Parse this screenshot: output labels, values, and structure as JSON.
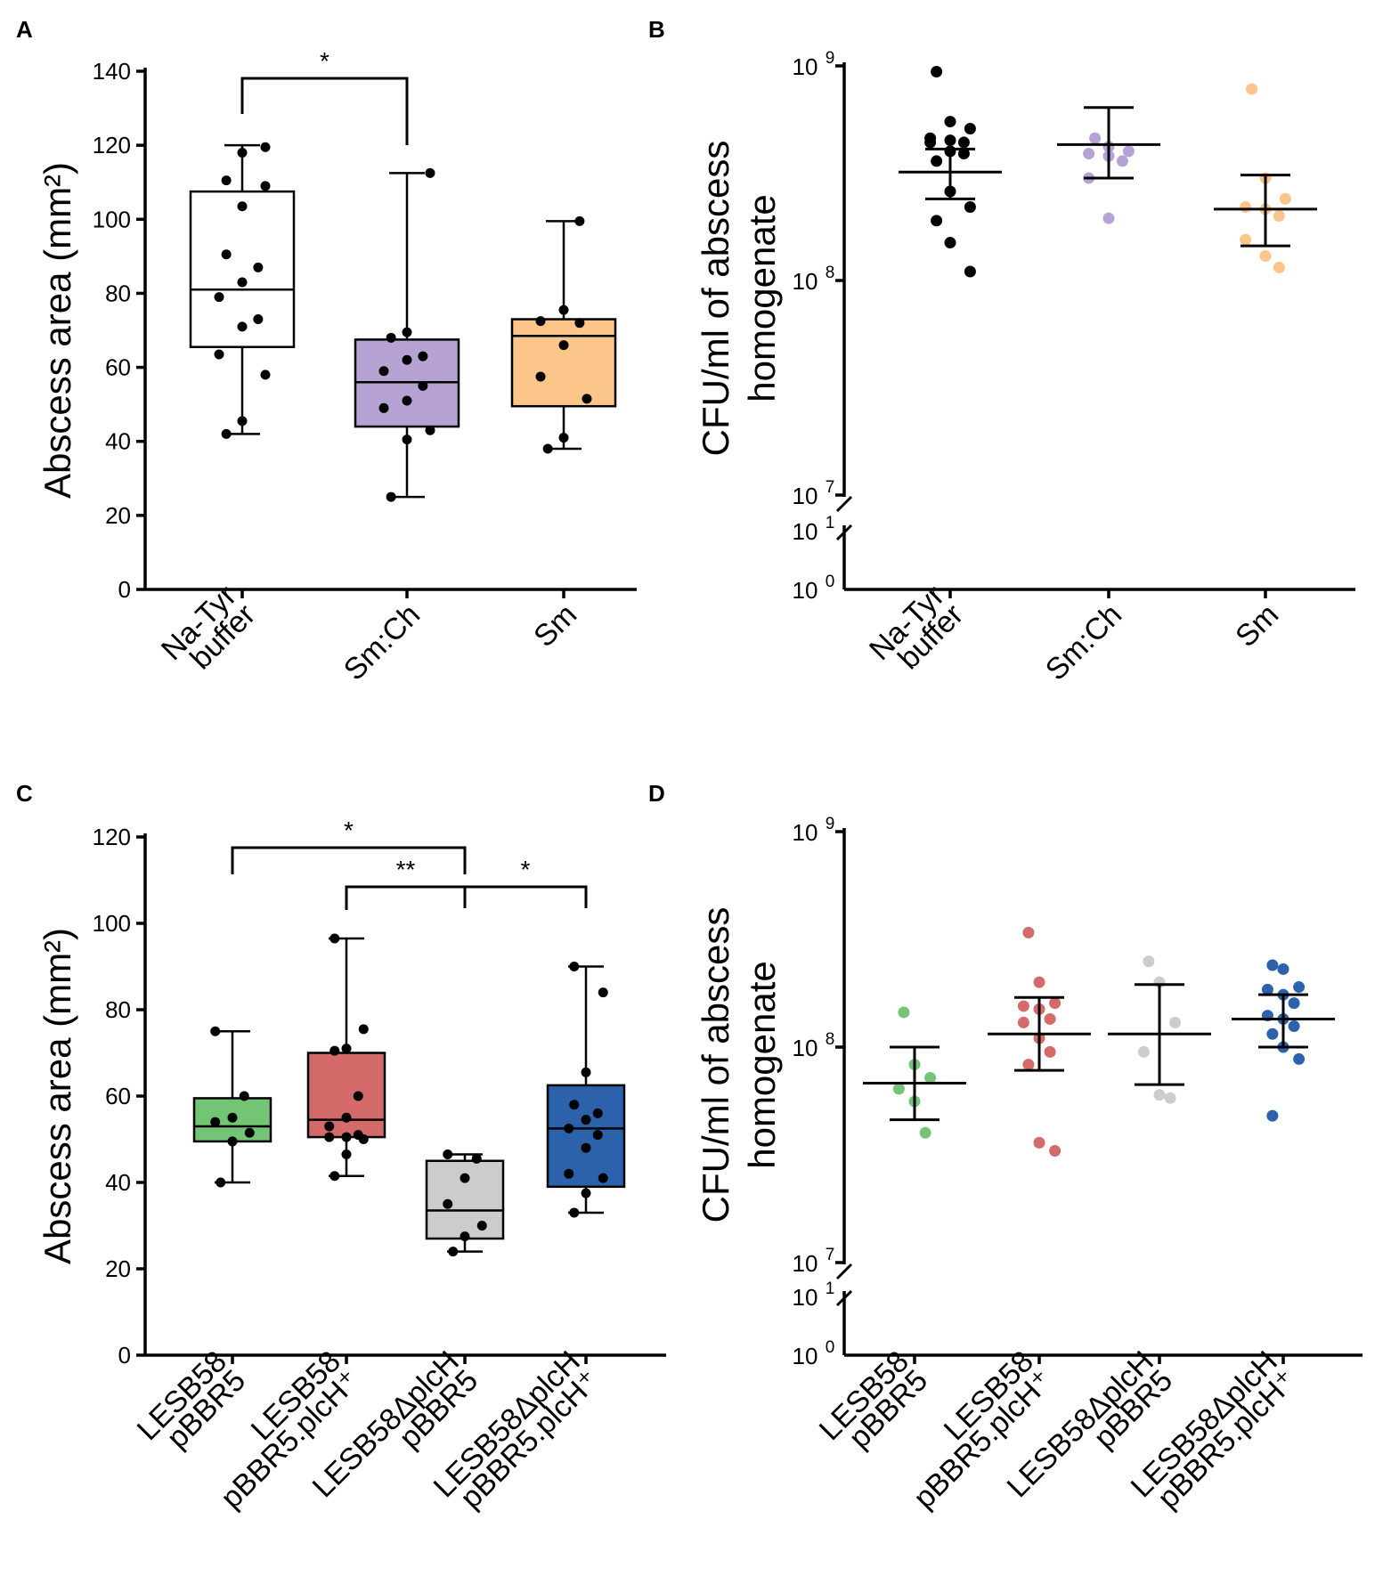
{
  "panel_labels": [
    "A",
    "B",
    "C",
    "D"
  ],
  "chart_data": [
    {
      "panel": "A",
      "type": "box",
      "ylabel": "Abscess area (mm²)",
      "ylim": [
        0,
        140
      ],
      "yticks": [
        "0",
        "20",
        "40",
        "60",
        "80",
        "100",
        "120",
        "140"
      ],
      "categories": [
        [
          "Na-Tyr",
          "buffer"
        ],
        [
          "Sm:Ch"
        ],
        [
          "Sm"
        ]
      ],
      "colors": [
        "#ffffff",
        "#b6a3d4",
        "#fcc58a"
      ],
      "boxes": [
        {
          "min": 42,
          "q1": 65.5,
          "median": 81,
          "q3": 107.5,
          "max": 120,
          "points": [
            42,
            45.5,
            58,
            63.5,
            71,
            73,
            79,
            83,
            87,
            90.5,
            103.5,
            109,
            110.5,
            118,
            119.5
          ]
        },
        {
          "min": 25,
          "q1": 44,
          "median": 56,
          "q3": 67.5,
          "max": 112.5,
          "points": [
            25,
            40.5,
            43,
            49,
            51,
            55,
            59,
            62,
            63,
            68,
            69.5,
            112.5
          ]
        },
        {
          "min": 38,
          "q1": 49.5,
          "median": 68.5,
          "q3": 73,
          "max": 99.5,
          "points": [
            38,
            41,
            51.5,
            57.5,
            66,
            72,
            72.5,
            75.5,
            99.5
          ]
        }
      ],
      "significance": [
        {
          "from": 0,
          "to": 1,
          "label": "*"
        }
      ]
    },
    {
      "panel": "B",
      "type": "scatter",
      "ylabel": [
        "CFU/ml of abscess",
        "homogenate"
      ],
      "yticks": [
        {
          "base": "10",
          "exp": "0"
        },
        {
          "base": "10",
          "exp": "1"
        },
        {
          "base": "10",
          "exp": "7"
        },
        {
          "base": "10",
          "exp": "8"
        },
        {
          "base": "10",
          "exp": "9"
        }
      ],
      "categories": [
        [
          "Na-Tyr",
          "buffer"
        ],
        [
          "Sm:Ch"
        ],
        [
          "Sm"
        ]
      ],
      "colors": [
        "#000000",
        "#b6a3d4",
        "#fcc58a"
      ],
      "groups": [
        {
          "mean": 320000000.0,
          "err_low": 240000000.0,
          "err_high": 410000000.0,
          "points": [
            940000000.0,
            550000000.0,
            510000000.0,
            460000000.0,
            450000000.0,
            440000000.0,
            440000000.0,
            400000000.0,
            390000000.0,
            360000000.0,
            260000000.0,
            220000000.0,
            190000000.0,
            150000000.0,
            110000000.0
          ]
        },
        {
          "mean": 430000000.0,
          "err_low": 300000000.0,
          "err_high": 640000000.0,
          "points": [
            460000000.0,
            420000000.0,
            400000000.0,
            390000000.0,
            380000000.0,
            360000000.0,
            300000000.0,
            195000000.0
          ]
        },
        {
          "mean": 215000000.0,
          "err_low": 145000000.0,
          "err_high": 310000000.0,
          "points": [
            780000000.0,
            300000000.0,
            240000000.0,
            220000000.0,
            215000000.0,
            200000000.0,
            155000000.0,
            130000000.0,
            115000000.0
          ]
        }
      ]
    },
    {
      "panel": "C",
      "type": "box",
      "ylabel": "Abscess area (mm²)",
      "ylim": [
        0,
        120
      ],
      "yticks": [
        "0",
        "20",
        "40",
        "60",
        "80",
        "100",
        "120"
      ],
      "categories": [
        [
          "LESB58",
          "pBBR5"
        ],
        [
          "LESB58",
          "pBBR5.plcH⁺"
        ],
        [
          "LESB58ΔplcH",
          "pBBR5"
        ],
        [
          "LESB58ΔplcH",
          "pBBR5.plcH⁺"
        ]
      ],
      "colors": [
        "#74c476",
        "#d46a6a",
        "#cccccc",
        "#2b62ab"
      ],
      "boxes": [
        {
          "min": 40,
          "q1": 49.5,
          "median": 53,
          "q3": 59.5,
          "max": 75,
          "points": [
            40,
            49.5,
            51.5,
            54,
            55,
            60,
            75
          ]
        },
        {
          "min": 41.5,
          "q1": 50.5,
          "median": 54.5,
          "q3": 70,
          "max": 96.5,
          "points": [
            41.5,
            46.5,
            50,
            50.5,
            50.5,
            51,
            53,
            55,
            60,
            70.5,
            71,
            75.5,
            96.5
          ]
        },
        {
          "min": 24,
          "q1": 27,
          "median": 33.5,
          "q3": 45,
          "max": 46.5,
          "points": [
            24,
            27.5,
            30,
            35,
            41,
            45.5,
            46.5
          ]
        },
        {
          "min": 33,
          "q1": 39,
          "median": 52.5,
          "q3": 62.5,
          "max": 90,
          "points": [
            33,
            37.5,
            41,
            42,
            48,
            51,
            52.5,
            54.5,
            56,
            58,
            65.5,
            84,
            90
          ]
        }
      ],
      "significance": [
        {
          "from": 0,
          "to": 2,
          "label": "*"
        },
        {
          "from": 1,
          "to": 2,
          "label": "**"
        },
        {
          "from": 2,
          "to": 3,
          "label": "*"
        }
      ]
    },
    {
      "panel": "D",
      "type": "scatter",
      "ylabel": [
        "CFU/ml of abscess",
        "homogenate"
      ],
      "yticks": [
        {
          "base": "10",
          "exp": "0"
        },
        {
          "base": "10",
          "exp": "1"
        },
        {
          "base": "10",
          "exp": "7"
        },
        {
          "base": "10",
          "exp": "8"
        },
        {
          "base": "10",
          "exp": "9"
        }
      ],
      "categories": [
        [
          "LESB58",
          "pBBR5"
        ],
        [
          "LESB58",
          "pBBR5.plcH⁺"
        ],
        [
          "LESB58ΔplcH",
          "pBBR5"
        ],
        [
          "LESB58ΔplcH",
          "pBBR5.plcH⁺"
        ]
      ],
      "colors": [
        "#74c476",
        "#d46a6a",
        "#cccccc",
        "#2b62ab"
      ],
      "groups": [
        {
          "mean": 68000000.0,
          "err_low": 46000000.0,
          "err_high": 100000000.0,
          "points": [
            145000000.0,
            83000000.0,
            72000000.0,
            64000000.0,
            56000000.0,
            40000000.0
          ]
        },
        {
          "mean": 115000000.0,
          "err_low": 78000000.0,
          "err_high": 170000000.0,
          "points": [
            340000000.0,
            200000000.0,
            160000000.0,
            155000000.0,
            150000000.0,
            135000000.0,
            130000000.0,
            110000000.0,
            95000000.0,
            83000000.0,
            36000000.0,
            33000000.0
          ]
        },
        {
          "mean": 115000000.0,
          "err_low": 67000000.0,
          "err_high": 195000000.0,
          "points": [
            250000000.0,
            200000000.0,
            130000000.0,
            95000000.0,
            60000000.0,
            58000000.0
          ]
        },
        {
          "mean": 135000000.0,
          "err_low": 100000000.0,
          "err_high": 175000000.0,
          "points": [
            240000000.0,
            230000000.0,
            190000000.0,
            185000000.0,
            175000000.0,
            160000000.0,
            140000000.0,
            135000000.0,
            125000000.0,
            115000000.0,
            100000000.0,
            88000000.0,
            48000000.0
          ]
        }
      ]
    }
  ]
}
